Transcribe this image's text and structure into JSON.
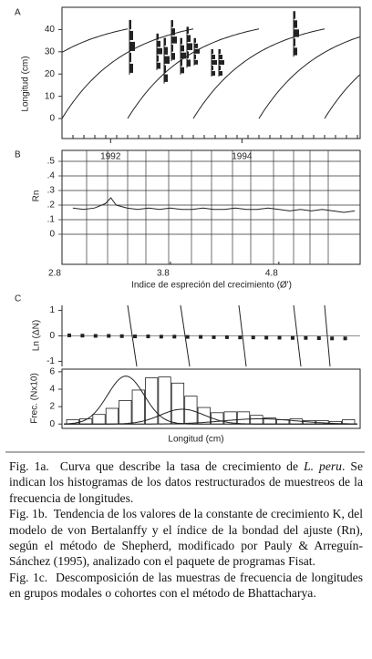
{
  "panel_a": {
    "label": "A",
    "y_label": "Longitud (cm)",
    "ylim": [
      -9,
      50
    ],
    "yticks": [
      0,
      10,
      20,
      30,
      40
    ],
    "xlim": [
      1991.26,
      1995.8
    ],
    "xticks": [
      1992,
      1994
    ]
  },
  "panel_b": {
    "label": "B",
    "y_label": "Rn",
    "ylim": [
      -0.206,
      0.575
    ],
    "yticks": [
      {
        "value": 0.5,
        "label": ".5"
      },
      {
        "value": 0.4,
        "label": ".4"
      },
      {
        "value": 0.3,
        "label": ".3"
      },
      {
        "value": 0.2,
        "label": ".2"
      },
      {
        "value": 0.1,
        "label": ".1"
      },
      0
    ],
    "xlim": [
      2.8,
      5.55
    ],
    "xticks": [
      2.8,
      3.8,
      4.8
    ],
    "x_label": "Indice de espreción del crecimiento (Ø')",
    "x": [
      2.9,
      3.0,
      3.1,
      3.2,
      3.25,
      3.3,
      3.4,
      3.5,
      3.6,
      3.7,
      3.8,
      3.9,
      4.0,
      4.1,
      4.2,
      4.3,
      4.4,
      4.5,
      4.6,
      4.7,
      4.8,
      4.9,
      5.0,
      5.1,
      5.2,
      5.3,
      5.4,
      5.5
    ],
    "values": [
      0.18,
      0.17,
      0.18,
      0.21,
      0.25,
      0.2,
      0.18,
      0.17,
      0.18,
      0.17,
      0.18,
      0.17,
      0.17,
      0.18,
      0.17,
      0.17,
      0.18,
      0.17,
      0.17,
      0.18,
      0.17,
      0.16,
      0.17,
      0.16,
      0.17,
      0.16,
      0.15,
      0.16
    ]
  },
  "panel_c": {
    "label": "C",
    "top": {
      "y_label": "Ln (ΔN)",
      "ylim": [
        -1.2,
        1.2
      ],
      "yticks": [
        1,
        0,
        -1
      ],
      "values": [
        0.02,
        0.01,
        0.0,
        0.0,
        -0.01,
        -0.02,
        -0.02,
        -0.03,
        -0.03,
        -0.04,
        -0.04,
        -0.05,
        -0.05,
        -0.06,
        -0.06,
        -0.07,
        -0.07,
        -0.08,
        -0.08,
        -0.09,
        -0.1,
        -0.1
      ]
    },
    "bottom": {
      "y_label": "Frec. (Nx10)",
      "x_label": "Longitud (cm)",
      "ylim": [
        -0.5,
        6.3
      ],
      "yticks": [
        0,
        2,
        4,
        6
      ],
      "values": [
        0.5,
        0.6,
        1.1,
        1.8,
        2.7,
        3.9,
        5.3,
        5.4,
        4.7,
        3.2,
        1.9,
        1.3,
        1.4,
        1.4,
        1.0,
        0.7,
        0.5,
        0.6,
        0.4,
        0.4,
        0.3,
        0.5
      ]
    }
  },
  "captions": [
    {
      "label": "Fig. 1a.",
      "text": "Curva que describe la tasa de crecimiento de",
      "species": "L. peru",
      "text2": ". Se indican los histogramas de los datos restructurados de muestreos de la frecuencia de longitudes."
    },
    {
      "label": "Fig. 1b.",
      "text": "Tendencia de los valores de la constante de crecimiento K, del modelo de von Bertalanffy y el índice de la bondad del ajuste (Rn), según el método de Shepherd, modificado por Pauly & Arreguín-Sánchez (1995), analizado con el paquete de programas Fisat."
    },
    {
      "label": "Fig. 1c.",
      "text": "Descomposición de las muestras de frecuencia de longitudes en grupos modales o cohortes con el método de Bhattacharya."
    }
  ]
}
